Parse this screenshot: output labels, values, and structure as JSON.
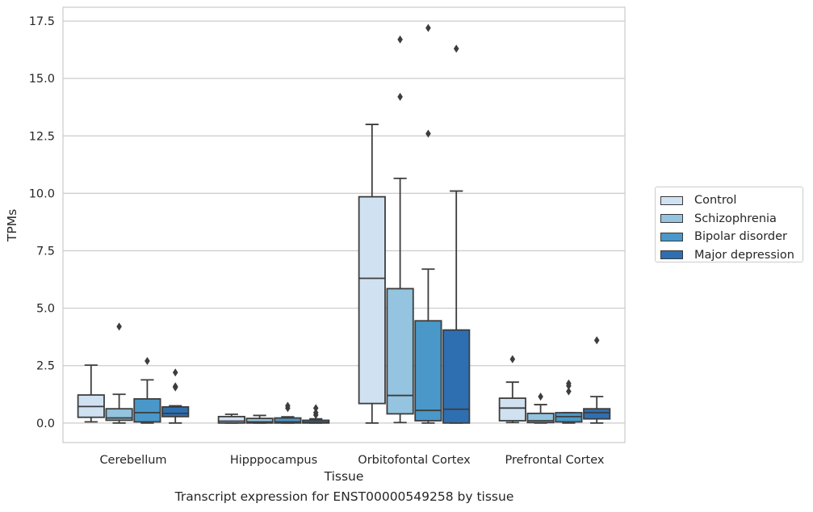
{
  "chart_data": {
    "type": "box",
    "xlabel": "Tissue",
    "ylabel": "TPMs",
    "caption": "Transcript expression for ENST00000549258 by tissue",
    "ylim": [
      -0.85,
      18.1
    ],
    "yticks": [
      "0.0",
      "2.5",
      "5.0",
      "7.5",
      "10.0",
      "12.5",
      "15.0",
      "17.5"
    ],
    "grid": true,
    "legend_position": "right",
    "categories": [
      "Cerebellum",
      "Hipppocampus",
      "Orbitofontal Cortex",
      "Prefrontal Cortex"
    ],
    "series": [
      {
        "name": "Control",
        "color": "#d0e1f2",
        "boxes": [
          {
            "whisker_low": 0.05,
            "q1": 0.25,
            "median": 0.72,
            "q3": 1.22,
            "whisker_high": 2.52,
            "outliers": []
          },
          {
            "whisker_low": 0.0,
            "q1": 0.0,
            "median": 0.08,
            "q3": 0.28,
            "whisker_high": 0.38,
            "outliers": []
          },
          {
            "whisker_low": 0.0,
            "q1": 0.85,
            "median": 6.3,
            "q3": 9.85,
            "whisker_high": 13.0,
            "outliers": []
          },
          {
            "whisker_low": 0.02,
            "q1": 0.1,
            "median": 0.65,
            "q3": 1.08,
            "whisker_high": 1.78,
            "outliers": [
              2.78
            ]
          }
        ]
      },
      {
        "name": "Schizophrenia",
        "color": "#94c4df",
        "boxes": [
          {
            "whisker_low": 0.0,
            "q1": 0.12,
            "median": 0.22,
            "q3": 0.62,
            "whisker_high": 1.25,
            "outliers": [
              4.2
            ]
          },
          {
            "whisker_low": 0.0,
            "q1": 0.0,
            "median": 0.05,
            "q3": 0.2,
            "whisker_high": 0.33,
            "outliers": []
          },
          {
            "whisker_low": 0.02,
            "q1": 0.4,
            "median": 1.2,
            "q3": 5.85,
            "whisker_high": 10.65,
            "outliers": [
              14.2,
              16.7
            ]
          },
          {
            "whisker_low": 0.0,
            "q1": 0.02,
            "median": 0.1,
            "q3": 0.42,
            "whisker_high": 0.8,
            "outliers": [
              1.15
            ]
          }
        ]
      },
      {
        "name": "Bipolar disorder",
        "color": "#4a98c9",
        "boxes": [
          {
            "whisker_low": 0.0,
            "q1": 0.05,
            "median": 0.45,
            "q3": 1.05,
            "whisker_high": 1.88,
            "outliers": [
              2.7
            ]
          },
          {
            "whisker_low": 0.0,
            "q1": 0.0,
            "median": 0.05,
            "q3": 0.22,
            "whisker_high": 0.27,
            "outliers": [
              0.65,
              0.75
            ]
          },
          {
            "whisker_low": 0.0,
            "q1": 0.1,
            "median": 0.55,
            "q3": 4.45,
            "whisker_high": 6.7,
            "outliers": [
              12.6,
              17.2
            ]
          },
          {
            "whisker_low": 0.0,
            "q1": 0.05,
            "median": 0.28,
            "q3": 0.45,
            "whisker_high": 0.45,
            "outliers": [
              1.38,
              1.62,
              1.72
            ]
          }
        ]
      },
      {
        "name": "Major depression",
        "color": "#2e6fb2",
        "boxes": [
          {
            "whisker_low": 0.0,
            "q1": 0.28,
            "median": 0.42,
            "q3": 0.7,
            "whisker_high": 0.75,
            "outliers": [
              1.55,
              1.6,
              2.2
            ]
          },
          {
            "whisker_low": 0.0,
            "q1": 0.0,
            "median": 0.03,
            "q3": 0.12,
            "whisker_high": 0.18,
            "outliers": [
              0.35,
              0.45,
              0.65
            ]
          },
          {
            "whisker_low": 0.0,
            "q1": 0.0,
            "median": 0.6,
            "q3": 4.05,
            "whisker_high": 10.1,
            "outliers": [
              16.3
            ]
          },
          {
            "whisker_low": 0.0,
            "q1": 0.18,
            "median": 0.45,
            "q3": 0.62,
            "whisker_high": 1.15,
            "outliers": [
              3.6
            ]
          }
        ]
      }
    ]
  }
}
